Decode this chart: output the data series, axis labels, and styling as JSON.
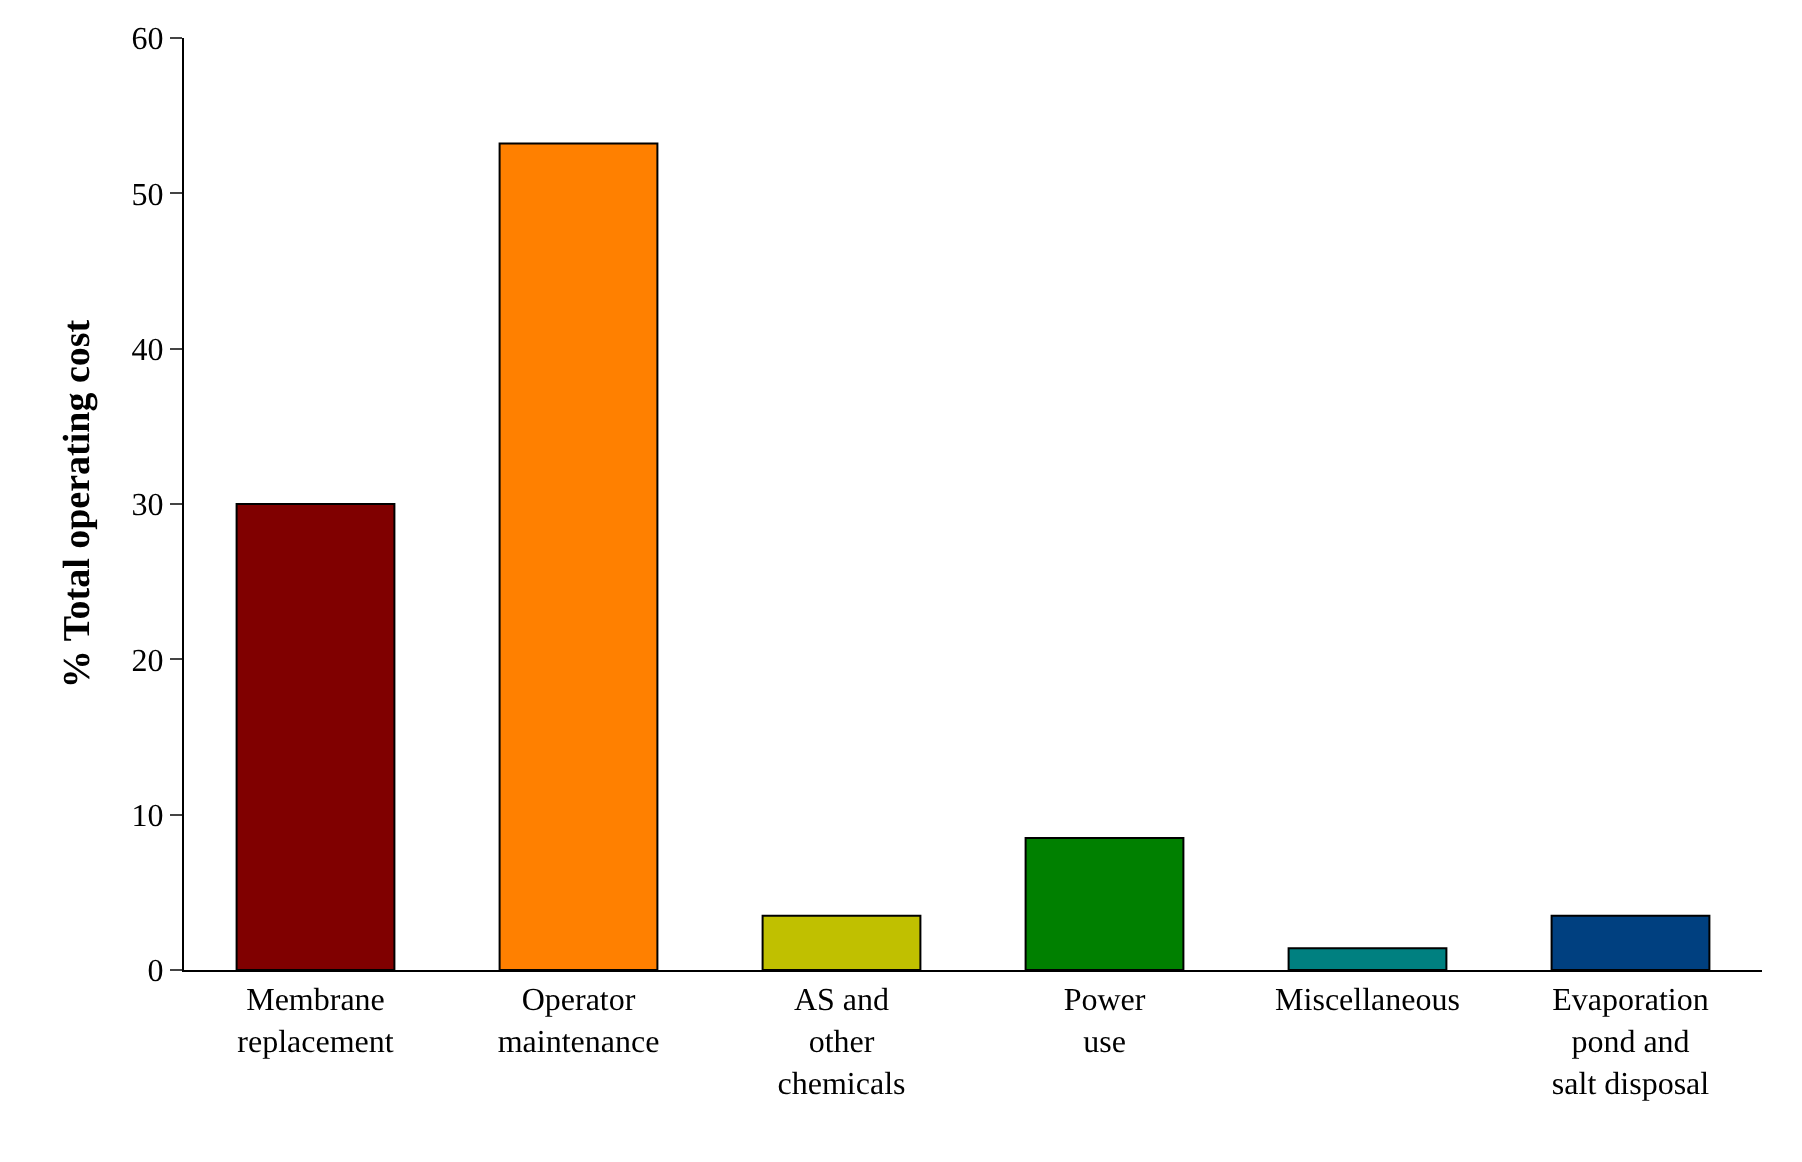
{
  "chart_data": {
    "type": "bar",
    "ylabel": "% Total operating cost",
    "categories": [
      "Membrane\nreplacement",
      "Operator\nmaintenance",
      "AS and\nother\nchemicals",
      "Power\nuse",
      "Miscellaneous",
      "Evaporation\npond and\nsalt disposal"
    ],
    "values": [
      30.0,
      53.2,
      3.5,
      8.5,
      1.4,
      3.5
    ],
    "colors": [
      "#800000",
      "#ff8000",
      "#c0c000",
      "#008000",
      "#008080",
      "#004080"
    ],
    "ylim": [
      0,
      60
    ],
    "yticks": [
      0,
      10,
      20,
      30,
      40,
      50,
      60
    ]
  }
}
